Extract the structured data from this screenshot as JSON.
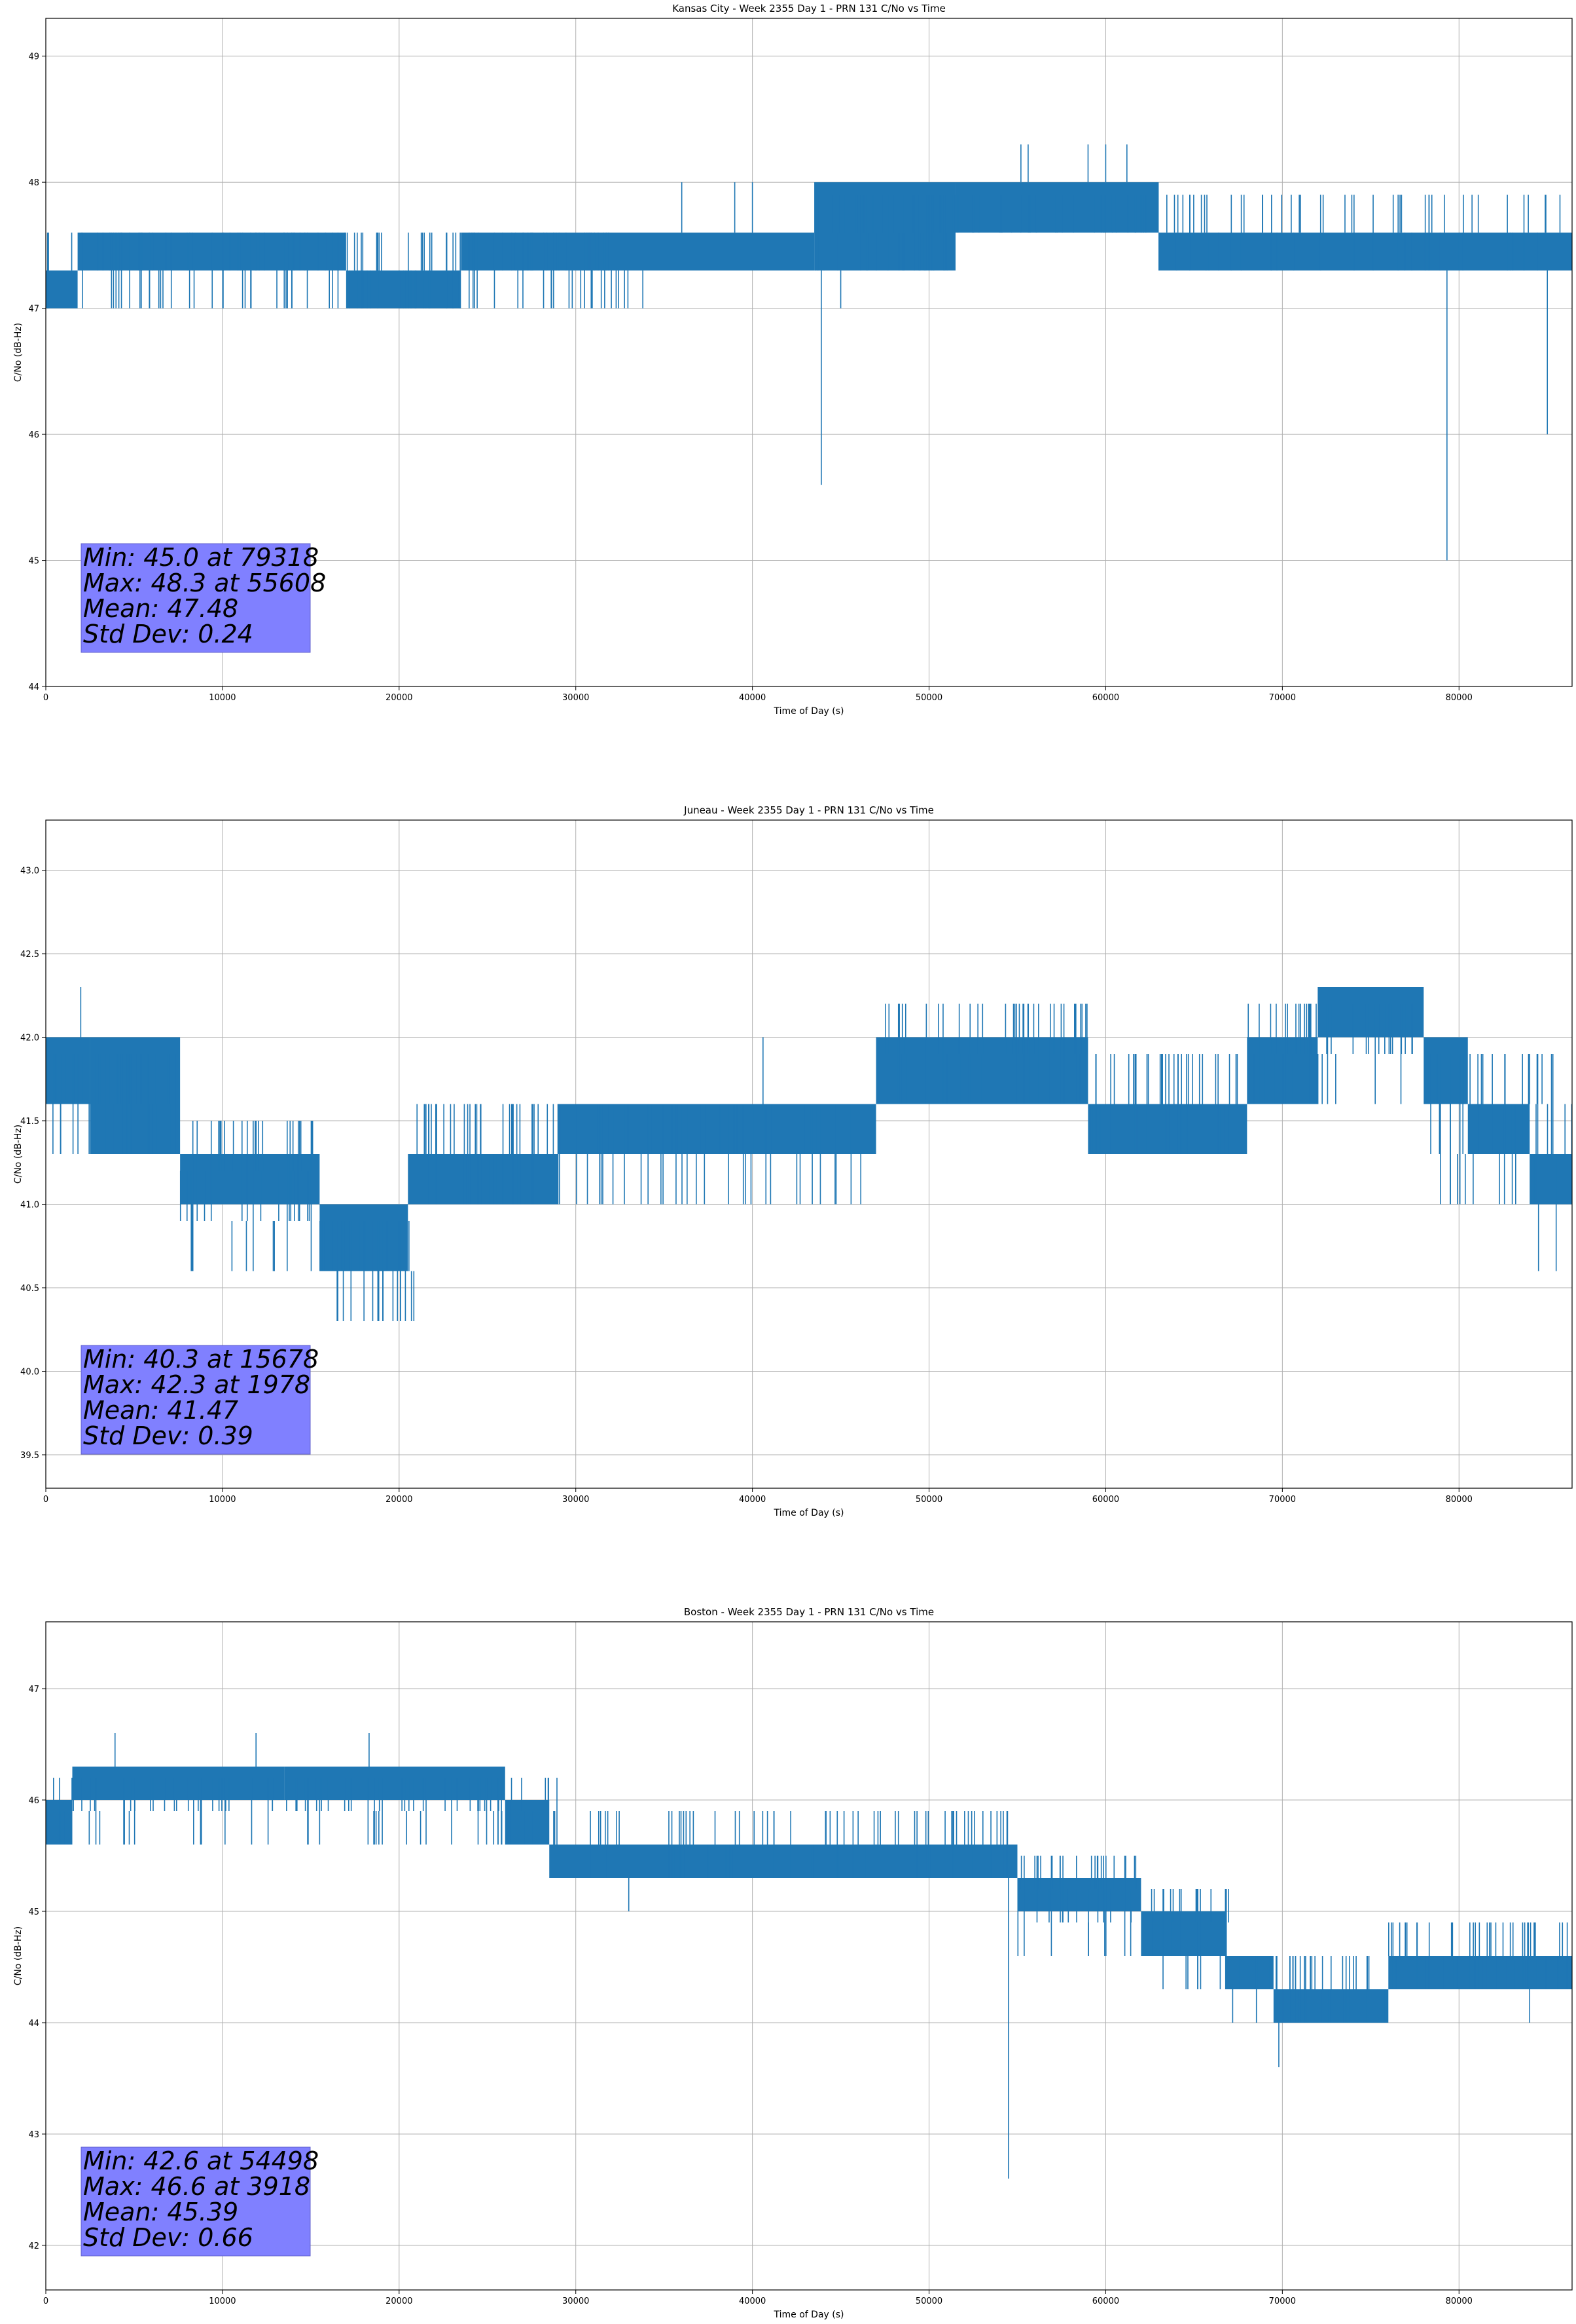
{
  "chart_data": [
    {
      "type": "line",
      "title": "Kansas City - Week 2355 Day 1 - PRN 131 C/No vs Time",
      "xlabel": "Time of Day (s)",
      "ylabel": "C/No (dB-Hz)",
      "xlim": [
        0,
        86400
      ],
      "ylim": [
        44,
        49.3
      ],
      "xticks": [
        0,
        10000,
        20000,
        30000,
        40000,
        50000,
        60000,
        70000,
        80000
      ],
      "xtick_labels": [
        "0",
        "10000",
        "20000",
        "30000",
        "40000",
        "50000",
        "60000",
        "70000",
        "80000"
      ],
      "yticks": [
        44,
        45,
        46,
        47,
        48,
        49
      ],
      "ytick_labels": [
        "44",
        "45",
        "46",
        "47",
        "48",
        "49"
      ],
      "grid": true,
      "series": [
        {
          "color": "#1f77b4",
          "bands": [
            {
              "x": [
                0,
                1800
              ],
              "y": [
                47.0,
                47.3
              ]
            },
            {
              "x": [
                1800,
                17000
              ],
              "y": [
                47.3,
                47.6
              ]
            },
            {
              "x": [
                17000,
                23500
              ],
              "y": [
                47.0,
                47.3
              ]
            },
            {
              "x": [
                23500,
                43500
              ],
              "y": [
                47.3,
                47.6
              ]
            },
            {
              "x": [
                43500,
                51500
              ],
              "y": [
                47.3,
                48.0
              ]
            },
            {
              "x": [
                51500,
                63000
              ],
              "y": [
                47.6,
                48.0
              ]
            },
            {
              "x": [
                63000,
                86400
              ],
              "y": [
                47.3,
                47.6
              ]
            }
          ],
          "noise": [
            {
              "x": [
                0,
                17000
              ],
              "y": [
                47.0,
                47.6
              ],
              "n": 70
            },
            {
              "x": [
                17000,
                32000
              ],
              "y": [
                47.0,
                47.6
              ],
              "n": 80
            },
            {
              "x": [
                32000,
                34000
              ],
              "y": [
                47.0,
                47.3
              ],
              "n": 6
            },
            {
              "x": [
                43500,
                51500
              ],
              "y": [
                47.3,
                48.0
              ],
              "n": 55
            },
            {
              "x": [
                51500,
                63000
              ],
              "y": [
                47.6,
                48.0
              ],
              "n": 30
            },
            {
              "x": [
                63000,
                86400
              ],
              "y": [
                47.3,
                48.0
              ],
              "n": 60
            }
          ],
          "spikes": [
            {
              "x": 36000,
              "y": [
                47.6,
                48.0
              ]
            },
            {
              "x": 39000,
              "y": [
                47.6,
                48.0
              ]
            },
            {
              "x": 40000,
              "y": [
                47.6,
                48.0
              ]
            },
            {
              "x": 43900,
              "y": [
                45.6,
                47.3
              ]
            },
            {
              "x": 45000,
              "y": [
                47.0,
                47.3
              ]
            },
            {
              "x": 55200,
              "y": [
                48.0,
                48.3
              ]
            },
            {
              "x": 55608,
              "y": [
                48.0,
                48.3
              ]
            },
            {
              "x": 59000,
              "y": [
                48.0,
                48.3
              ]
            },
            {
              "x": 60000,
              "y": [
                48.0,
                48.3
              ]
            },
            {
              "x": 61200,
              "y": [
                48.0,
                48.3
              ]
            },
            {
              "x": 79318,
              "y": [
                45.0,
                47.3
              ]
            },
            {
              "x": 85000,
              "y": [
                46.0,
                47.3
              ]
            }
          ]
        }
      ],
      "annotation": {
        "lines": [
          "Min: 45.0 at 79318",
          "Max: 48.3 at 55608",
          "Mean: 47.48",
          "Std Dev: 0.24"
        ],
        "box_color": "#8080ff"
      }
    },
    {
      "type": "line",
      "title": "Juneau - Week 2355 Day 1 - PRN 131 C/No vs Time",
      "xlabel": "Time of Day (s)",
      "ylabel": "C/No (dB-Hz)",
      "xlim": [
        0,
        86400
      ],
      "ylim": [
        39.3,
        43.3
      ],
      "xticks": [
        0,
        10000,
        20000,
        30000,
        40000,
        50000,
        60000,
        70000,
        80000
      ],
      "xtick_labels": [
        "0",
        "10000",
        "20000",
        "30000",
        "40000",
        "50000",
        "60000",
        "70000",
        "80000"
      ],
      "yticks": [
        39.5,
        40.0,
        40.5,
        41.0,
        41.5,
        42.0,
        42.5,
        43.0
      ],
      "ytick_labels": [
        "39.5",
        "40.0",
        "40.5",
        "41.0",
        "41.5",
        "42.0",
        "42.5",
        "43.0"
      ],
      "grid": true,
      "series": [
        {
          "color": "#1f77b4",
          "bands": [
            {
              "x": [
                0,
                2500
              ],
              "y": [
                41.6,
                42.0
              ]
            },
            {
              "x": [
                2500,
                7600
              ],
              "y": [
                41.3,
                42.0
              ]
            },
            {
              "x": [
                7600,
                15500
              ],
              "y": [
                41.0,
                41.3
              ]
            },
            {
              "x": [
                15500,
                20500
              ],
              "y": [
                40.6,
                41.0
              ]
            },
            {
              "x": [
                20500,
                29000
              ],
              "y": [
                41.0,
                41.3
              ]
            },
            {
              "x": [
                29000,
                47000
              ],
              "y": [
                41.3,
                41.6
              ]
            },
            {
              "x": [
                47000,
                59000
              ],
              "y": [
                41.6,
                42.0
              ]
            },
            {
              "x": [
                59000,
                68000
              ],
              "y": [
                41.3,
                41.6
              ]
            },
            {
              "x": [
                68000,
                72000
              ],
              "y": [
                41.6,
                42.0
              ]
            },
            {
              "x": [
                72000,
                78000
              ],
              "y": [
                42.0,
                42.3
              ]
            },
            {
              "x": [
                78000,
                80500
              ],
              "y": [
                41.6,
                42.0
              ]
            },
            {
              "x": [
                80500,
                84000
              ],
              "y": [
                41.3,
                41.6
              ]
            },
            {
              "x": [
                84000,
                86400
              ],
              "y": [
                41.0,
                41.3
              ]
            }
          ],
          "noise": [
            {
              "x": [
                0,
                7600
              ],
              "y": [
                41.3,
                42.0
              ],
              "n": 40
            },
            {
              "x": [
                7600,
                15500
              ],
              "y": [
                40.6,
                41.6
              ],
              "n": 45
            },
            {
              "x": [
                15500,
                21000
              ],
              "y": [
                40.3,
                41.0
              ],
              "n": 35
            },
            {
              "x": [
                20500,
                29000
              ],
              "y": [
                41.0,
                41.6
              ],
              "n": 45
            },
            {
              "x": [
                29000,
                47000
              ],
              "y": [
                41.0,
                41.6
              ],
              "n": 60
            },
            {
              "x": [
                47000,
                59000
              ],
              "y": [
                41.6,
                42.3
              ],
              "n": 50
            },
            {
              "x": [
                59000,
                68000
              ],
              "y": [
                41.3,
                42.0
              ],
              "n": 40
            },
            {
              "x": [
                68000,
                72000
              ],
              "y": [
                41.6,
                42.3
              ],
              "n": 25
            },
            {
              "x": [
                72000,
                78000
              ],
              "y": [
                41.6,
                42.3
              ],
              "n": 20
            },
            {
              "x": [
                78000,
                86400
              ],
              "y": [
                41.0,
                42.0
              ],
              "n": 40
            }
          ],
          "spikes": [
            {
              "x": 1978,
              "y": [
                42.0,
                42.3
              ]
            },
            {
              "x": 40600,
              "y": [
                41.6,
                42.0
              ]
            },
            {
              "x": 84500,
              "y": [
                40.6,
                41.0
              ]
            },
            {
              "x": 85500,
              "y": [
                40.6,
                41.0
              ]
            },
            {
              "x": 86000,
              "y": [
                41.3,
                41.6
              ]
            }
          ]
        }
      ],
      "annotation": {
        "lines": [
          "Min: 40.3 at 15678",
          "Max: 42.3 at 1978",
          "Mean: 41.47",
          "Std Dev: 0.39"
        ],
        "box_color": "#8080ff"
      }
    },
    {
      "type": "line",
      "title": "Boston - Week 2355 Day 1 - PRN 131 C/No vs Time",
      "xlabel": "Time of Day (s)",
      "ylabel": "C/No (dB-Hz)",
      "xlim": [
        0,
        86400
      ],
      "ylim": [
        41.6,
        47.6
      ],
      "xticks": [
        0,
        10000,
        20000,
        30000,
        40000,
        50000,
        60000,
        70000,
        80000
      ],
      "xtick_labels": [
        "0",
        "10000",
        "20000",
        "30000",
        "40000",
        "50000",
        "60000",
        "70000",
        "80000"
      ],
      "yticks": [
        42,
        43,
        44,
        45,
        46,
        47
      ],
      "ytick_labels": [
        "42",
        "43",
        "44",
        "45",
        "46",
        "47"
      ],
      "grid": true,
      "series": [
        {
          "color": "#1f77b4",
          "bands": [
            {
              "x": [
                0,
                1500
              ],
              "y": [
                45.6,
                46.0
              ]
            },
            {
              "x": [
                1500,
                13500
              ],
              "y": [
                46.0,
                46.3
              ]
            },
            {
              "x": [
                13500,
                26000
              ],
              "y": [
                46.0,
                46.3
              ]
            },
            {
              "x": [
                26000,
                28500
              ],
              "y": [
                45.6,
                46.0
              ]
            },
            {
              "x": [
                28500,
                55000
              ],
              "y": [
                45.3,
                45.6
              ]
            },
            {
              "x": [
                55000,
                62000
              ],
              "y": [
                45.0,
                45.3
              ]
            },
            {
              "x": [
                62000,
                66800
              ],
              "y": [
                44.6,
                45.0
              ]
            },
            {
              "x": [
                66800,
                69500
              ],
              "y": [
                44.3,
                44.6
              ]
            },
            {
              "x": [
                69500,
                76000
              ],
              "y": [
                44.0,
                44.3
              ]
            },
            {
              "x": [
                76000,
                86400
              ],
              "y": [
                44.3,
                44.6
              ]
            }
          ],
          "noise": [
            {
              "x": [
                0,
                13500
              ],
              "y": [
                45.6,
                46.3
              ],
              "n": 40
            },
            {
              "x": [
                13500,
                29000
              ],
              "y": [
                45.6,
                46.3
              ],
              "n": 60
            },
            {
              "x": [
                29000,
                55000
              ],
              "y": [
                45.3,
                46.0
              ],
              "n": 70
            },
            {
              "x": [
                55000,
                62000
              ],
              "y": [
                44.6,
                45.6
              ],
              "n": 35
            },
            {
              "x": [
                62000,
                67000
              ],
              "y": [
                44.3,
                45.3
              ],
              "n": 30
            },
            {
              "x": [
                67000,
                76000
              ],
              "y": [
                44.0,
                44.6
              ],
              "n": 40
            },
            {
              "x": [
                76000,
                86400
              ],
              "y": [
                44.3,
                45.0
              ],
              "n": 55
            }
          ],
          "spikes": [
            {
              "x": 3918,
              "y": [
                46.3,
                46.6
              ]
            },
            {
              "x": 11900,
              "y": [
                46.3,
                46.6
              ]
            },
            {
              "x": 18300,
              "y": [
                46.3,
                46.6
              ]
            },
            {
              "x": 33000,
              "y": [
                45.0,
                45.3
              ]
            },
            {
              "x": 54498,
              "y": [
                42.6,
                45.3
              ]
            },
            {
              "x": 69800,
              "y": [
                43.6,
                44.0
              ]
            },
            {
              "x": 84000,
              "y": [
                44.0,
                44.3
              ]
            }
          ]
        }
      ],
      "annotation": {
        "lines": [
          "Min: 42.6 at 54498",
          "Max: 46.6 at 3918",
          "Mean: 45.39",
          "Std Dev: 0.66"
        ],
        "box_color": "#8080ff"
      }
    }
  ]
}
